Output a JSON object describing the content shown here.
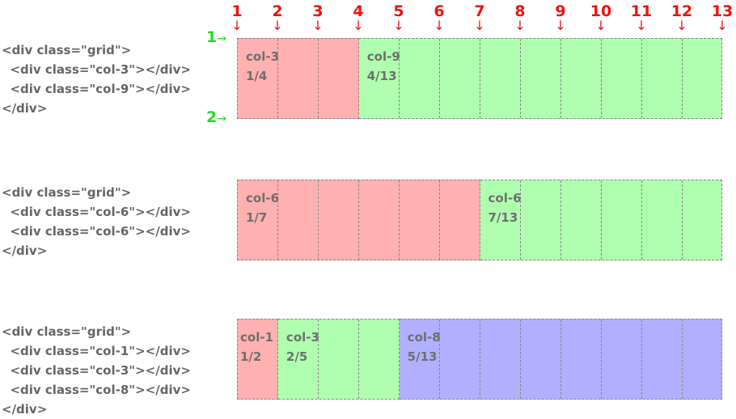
{
  "column_line_numbers": [
    "1",
    "2",
    "3",
    "4",
    "5",
    "6",
    "7",
    "8",
    "9",
    "10",
    "11",
    "12",
    "13"
  ],
  "row_line_numbers": [
    "1",
    "2"
  ],
  "colors": {
    "red_cell": "#ffb0b0",
    "green_cell": "#b0ffb0",
    "blue_cell": "#b0b0ff",
    "column_numbers": "#ee1111",
    "row_numbers": "#22dd22"
  },
  "examples": [
    {
      "code": [
        "<div class=\"grid\">",
        "  <div class=\"col-3\"></div>",
        "  <div class=\"col-9\"></div>",
        "</div>"
      ],
      "cells": [
        {
          "name": "col-3",
          "span": 3,
          "range": "1/4",
          "color": "red"
        },
        {
          "name": "col-9",
          "span": 9,
          "range": "4/13",
          "color": "green"
        }
      ]
    },
    {
      "code": [
        "<div class=\"grid\">",
        "  <div class=\"col-6\"></div>",
        "  <div class=\"col-6\"></div>",
        "</div>"
      ],
      "cells": [
        {
          "name": "col-6",
          "span": 6,
          "range": "1/7",
          "color": "red"
        },
        {
          "name": "col-6",
          "span": 6,
          "range": "7/13",
          "color": "green"
        }
      ]
    },
    {
      "code": [
        "<div class=\"grid\">",
        "  <div class=\"col-1\"></div>",
        "  <div class=\"col-3\"></div>",
        "  <div class=\"col-8\"></div>",
        "</div>"
      ],
      "cells": [
        {
          "name": "col-1",
          "span": 1,
          "range": "1/2",
          "color": "red"
        },
        {
          "name": "col-3",
          "span": 3,
          "range": "2/5",
          "color": "green"
        },
        {
          "name": "col-8",
          "span": 8,
          "range": "5/13",
          "color": "blue"
        }
      ]
    }
  ]
}
